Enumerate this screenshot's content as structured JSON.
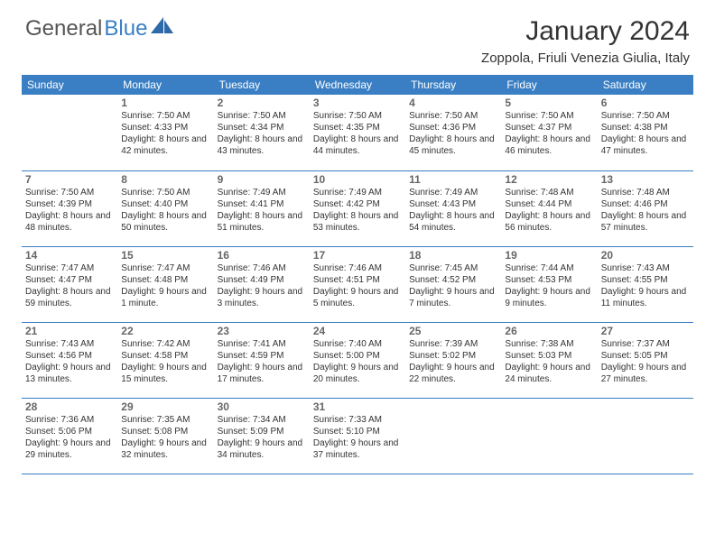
{
  "logo": {
    "text1": "General",
    "text2": "Blue"
  },
  "title": "January 2024",
  "location": "Zoppola, Friuli Venezia Giulia, Italy",
  "colors": {
    "header_bg": "#3a7fc4",
    "header_text": "#ffffff",
    "border": "#3a7fc4",
    "daynum": "#666666",
    "body_text": "#333333",
    "logo_gray": "#555555",
    "logo_blue": "#3a7fc4",
    "background": "#ffffff"
  },
  "fonts": {
    "title_size": 30,
    "location_size": 15,
    "logo_size": 24,
    "weekday_size": 12,
    "daynum_size": 12,
    "detail_size": 10
  },
  "weekdays": [
    "Sunday",
    "Monday",
    "Tuesday",
    "Wednesday",
    "Thursday",
    "Friday",
    "Saturday"
  ],
  "weeks": [
    [
      null,
      {
        "d": "1",
        "sr": "7:50 AM",
        "ss": "4:33 PM",
        "dl": "8 hours and 42 minutes."
      },
      {
        "d": "2",
        "sr": "7:50 AM",
        "ss": "4:34 PM",
        "dl": "8 hours and 43 minutes."
      },
      {
        "d": "3",
        "sr": "7:50 AM",
        "ss": "4:35 PM",
        "dl": "8 hours and 44 minutes."
      },
      {
        "d": "4",
        "sr": "7:50 AM",
        "ss": "4:36 PM",
        "dl": "8 hours and 45 minutes."
      },
      {
        "d": "5",
        "sr": "7:50 AM",
        "ss": "4:37 PM",
        "dl": "8 hours and 46 minutes."
      },
      {
        "d": "6",
        "sr": "7:50 AM",
        "ss": "4:38 PM",
        "dl": "8 hours and 47 minutes."
      }
    ],
    [
      {
        "d": "7",
        "sr": "7:50 AM",
        "ss": "4:39 PM",
        "dl": "8 hours and 48 minutes."
      },
      {
        "d": "8",
        "sr": "7:50 AM",
        "ss": "4:40 PM",
        "dl": "8 hours and 50 minutes."
      },
      {
        "d": "9",
        "sr": "7:49 AM",
        "ss": "4:41 PM",
        "dl": "8 hours and 51 minutes."
      },
      {
        "d": "10",
        "sr": "7:49 AM",
        "ss": "4:42 PM",
        "dl": "8 hours and 53 minutes."
      },
      {
        "d": "11",
        "sr": "7:49 AM",
        "ss": "4:43 PM",
        "dl": "8 hours and 54 minutes."
      },
      {
        "d": "12",
        "sr": "7:48 AM",
        "ss": "4:44 PM",
        "dl": "8 hours and 56 minutes."
      },
      {
        "d": "13",
        "sr": "7:48 AM",
        "ss": "4:46 PM",
        "dl": "8 hours and 57 minutes."
      }
    ],
    [
      {
        "d": "14",
        "sr": "7:47 AM",
        "ss": "4:47 PM",
        "dl": "8 hours and 59 minutes."
      },
      {
        "d": "15",
        "sr": "7:47 AM",
        "ss": "4:48 PM",
        "dl": "9 hours and 1 minute."
      },
      {
        "d": "16",
        "sr": "7:46 AM",
        "ss": "4:49 PM",
        "dl": "9 hours and 3 minutes."
      },
      {
        "d": "17",
        "sr": "7:46 AM",
        "ss": "4:51 PM",
        "dl": "9 hours and 5 minutes."
      },
      {
        "d": "18",
        "sr": "7:45 AM",
        "ss": "4:52 PM",
        "dl": "9 hours and 7 minutes."
      },
      {
        "d": "19",
        "sr": "7:44 AM",
        "ss": "4:53 PM",
        "dl": "9 hours and 9 minutes."
      },
      {
        "d": "20",
        "sr": "7:43 AM",
        "ss": "4:55 PM",
        "dl": "9 hours and 11 minutes."
      }
    ],
    [
      {
        "d": "21",
        "sr": "7:43 AM",
        "ss": "4:56 PM",
        "dl": "9 hours and 13 minutes."
      },
      {
        "d": "22",
        "sr": "7:42 AM",
        "ss": "4:58 PM",
        "dl": "9 hours and 15 minutes."
      },
      {
        "d": "23",
        "sr": "7:41 AM",
        "ss": "4:59 PM",
        "dl": "9 hours and 17 minutes."
      },
      {
        "d": "24",
        "sr": "7:40 AM",
        "ss": "5:00 PM",
        "dl": "9 hours and 20 minutes."
      },
      {
        "d": "25",
        "sr": "7:39 AM",
        "ss": "5:02 PM",
        "dl": "9 hours and 22 minutes."
      },
      {
        "d": "26",
        "sr": "7:38 AM",
        "ss": "5:03 PM",
        "dl": "9 hours and 24 minutes."
      },
      {
        "d": "27",
        "sr": "7:37 AM",
        "ss": "5:05 PM",
        "dl": "9 hours and 27 minutes."
      }
    ],
    [
      {
        "d": "28",
        "sr": "7:36 AM",
        "ss": "5:06 PM",
        "dl": "9 hours and 29 minutes."
      },
      {
        "d": "29",
        "sr": "7:35 AM",
        "ss": "5:08 PM",
        "dl": "9 hours and 32 minutes."
      },
      {
        "d": "30",
        "sr": "7:34 AM",
        "ss": "5:09 PM",
        "dl": "9 hours and 34 minutes."
      },
      {
        "d": "31",
        "sr": "7:33 AM",
        "ss": "5:10 PM",
        "dl": "9 hours and 37 minutes."
      },
      null,
      null,
      null
    ]
  ],
  "labels": {
    "sunrise": "Sunrise:",
    "sunset": "Sunset:",
    "daylight": "Daylight:"
  }
}
